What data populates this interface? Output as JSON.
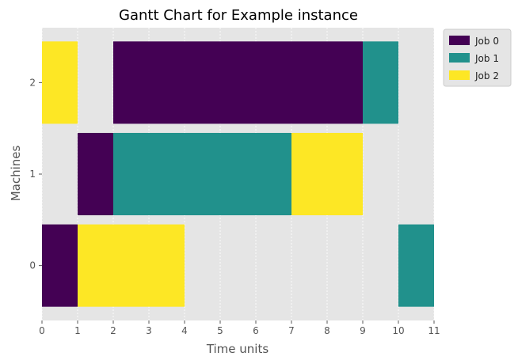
{
  "chart_data": {
    "type": "gantt",
    "title": "Gantt Chart for Example instance",
    "xlabel": "Time units",
    "ylabel": "Machines",
    "xlim": [
      0,
      11
    ],
    "xticks": [
      0,
      1,
      2,
      3,
      4,
      5,
      6,
      7,
      8,
      9,
      10,
      11
    ],
    "machines": [
      0,
      1,
      2
    ],
    "grid": true,
    "legend": {
      "placement": "outside-top-right",
      "entries": [
        "Job 0",
        "Job 1",
        "Job 2"
      ]
    },
    "colors": {
      "Job 0": "#440154",
      "Job 1": "#21918c",
      "Job 2": "#fde725",
      "plot_background": "#e5e5e5",
      "grid": "#ffffff"
    },
    "tasks": [
      {
        "job": "Job 0",
        "machine": 0,
        "start": 0,
        "end": 1
      },
      {
        "job": "Job 2",
        "machine": 0,
        "start": 1,
        "end": 4
      },
      {
        "job": "Job 1",
        "machine": 0,
        "start": 10,
        "end": 11
      },
      {
        "job": "Job 0",
        "machine": 1,
        "start": 1,
        "end": 2
      },
      {
        "job": "Job 1",
        "machine": 1,
        "start": 2,
        "end": 7
      },
      {
        "job": "Job 2",
        "machine": 1,
        "start": 7,
        "end": 9
      },
      {
        "job": "Job 2",
        "machine": 2,
        "start": 0,
        "end": 1
      },
      {
        "job": "Job 0",
        "machine": 2,
        "start": 2,
        "end": 9
      },
      {
        "job": "Job 1",
        "machine": 2,
        "start": 9,
        "end": 10
      }
    ]
  }
}
